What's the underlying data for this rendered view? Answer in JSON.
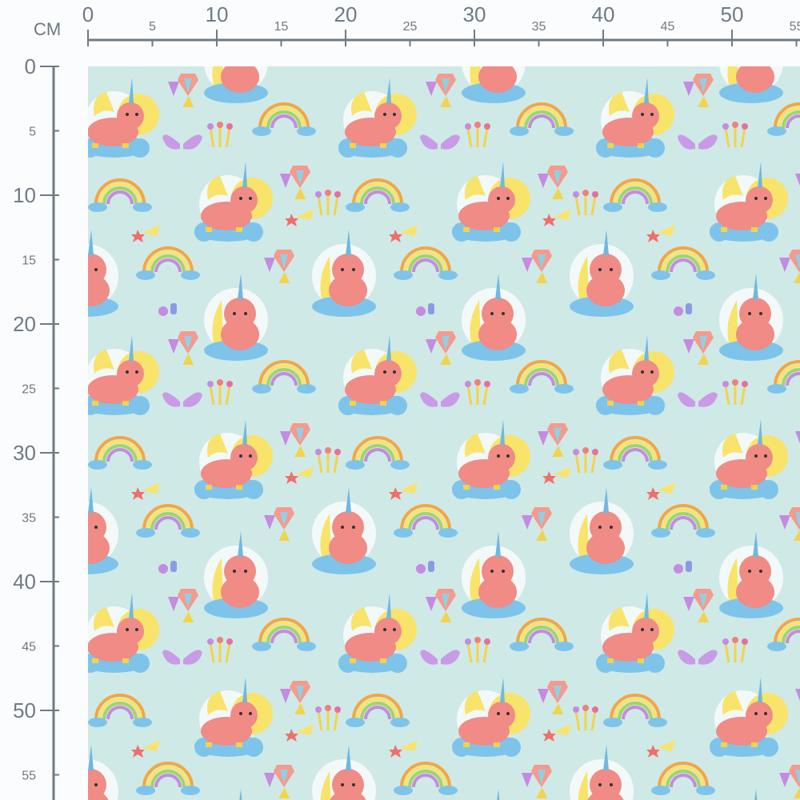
{
  "ruler": {
    "unit": "CM",
    "top_ticks": [
      "0",
      "5",
      "10",
      "15",
      "20",
      "25",
      "30",
      "35",
      "40",
      "45",
      "50",
      "55"
    ],
    "left_ticks": [
      "0",
      "5",
      "10",
      "15",
      "20",
      "25",
      "30",
      "35",
      "40",
      "45",
      "50",
      "55"
    ],
    "color": "#6f7a84"
  },
  "fabric": {
    "pattern": "unicorns, rainbows, gems, wings, heart wands, shooting stars",
    "colors": {
      "background": "#cfe9e7",
      "unicorn": "#f08b86",
      "cloud": "#7ec4ea",
      "mane": "#f8e46a",
      "horn": "#6fb8e0",
      "rainbow_outer": "#f4a640",
      "gem": "#c58be0"
    }
  }
}
